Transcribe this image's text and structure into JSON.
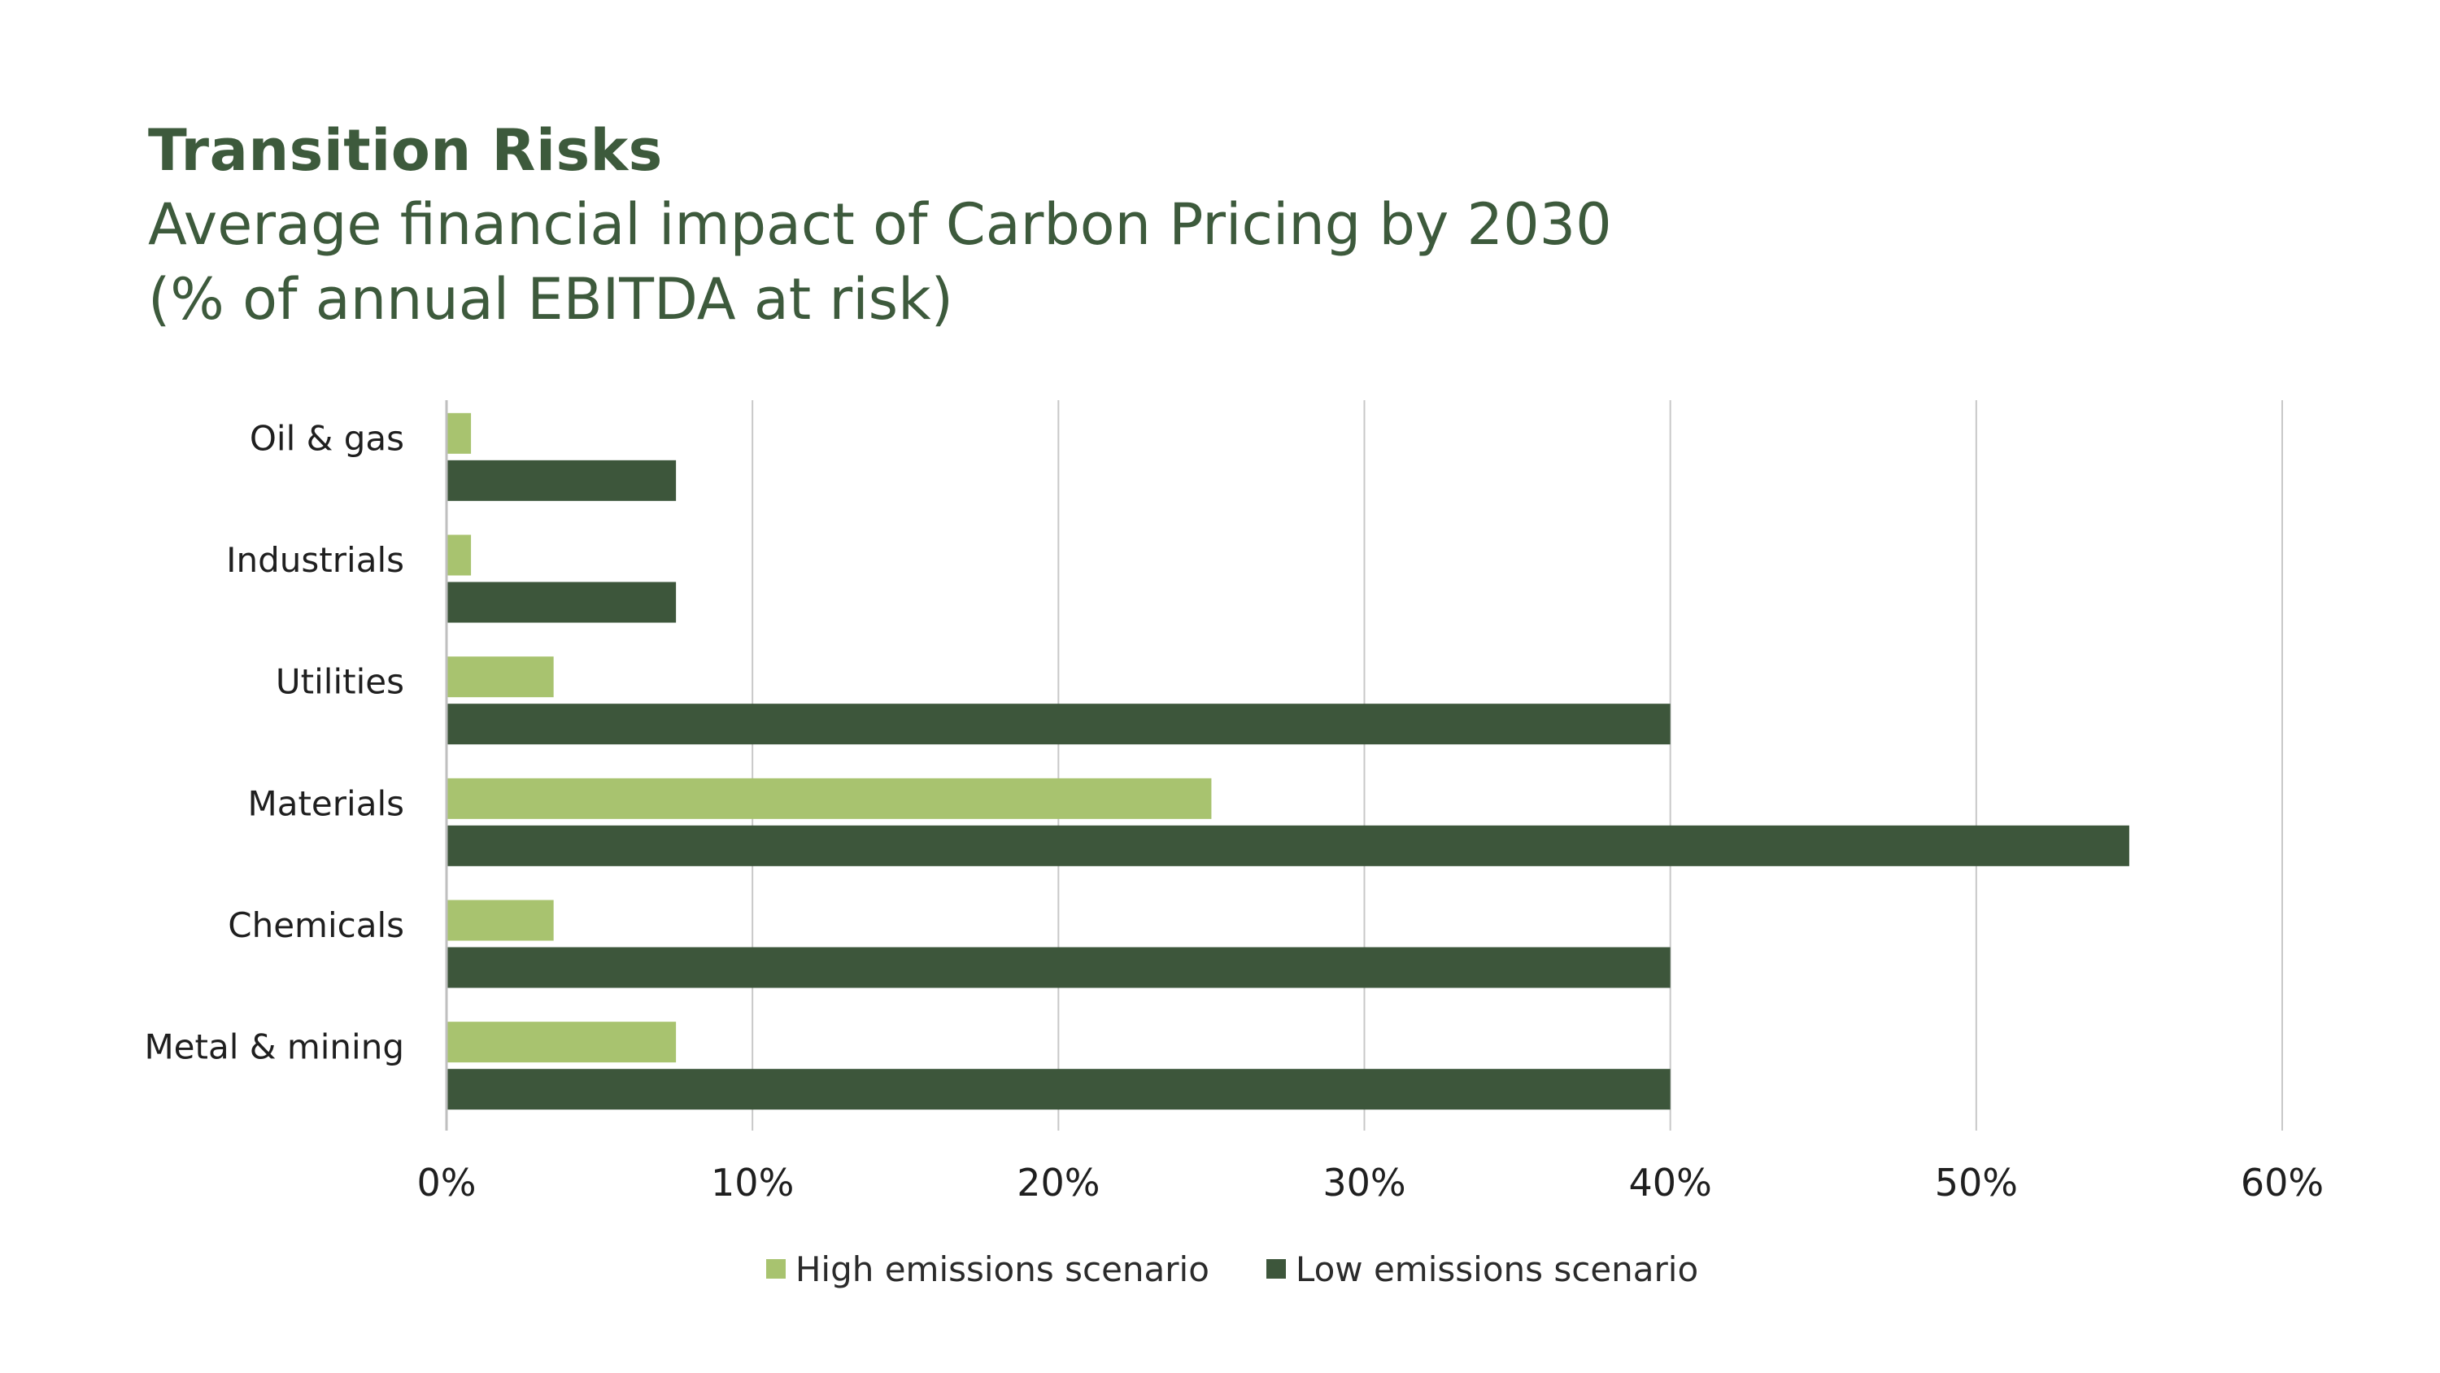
{
  "chart_data": {
    "type": "bar",
    "orientation": "horizontal",
    "title": "Transition Risks",
    "subtitle": "Average financial impact of Carbon Pricing by 2030 (% of annual EBITDA at risk)",
    "categories": [
      "Oil & gas",
      "Industrials",
      "Utilities",
      "Materials",
      "Chemicals",
      "Metal & mining"
    ],
    "series": [
      {
        "name": "High emissions scenario",
        "color": "#a8c36f",
        "values": [
          0.8,
          0.8,
          3.5,
          25,
          3.5,
          7.5
        ]
      },
      {
        "name": "Low emissions scenario",
        "color": "#3d563b",
        "values": [
          7.5,
          7.5,
          40,
          55,
          40,
          40
        ]
      }
    ],
    "xlim": [
      0,
      60
    ],
    "xticks": [
      0,
      10,
      20,
      30,
      40,
      50,
      60
    ],
    "xtick_labels": [
      "0%",
      "10%",
      "20%",
      "30%",
      "40%",
      "50%",
      "60%"
    ],
    "xlabel": "",
    "ylabel": "",
    "grid": "vertical",
    "legend_position": "bottom"
  },
  "colors": {
    "title": "#3d5a3c",
    "gridline": "#c8c8c8",
    "axis": "#bfbfbf"
  }
}
